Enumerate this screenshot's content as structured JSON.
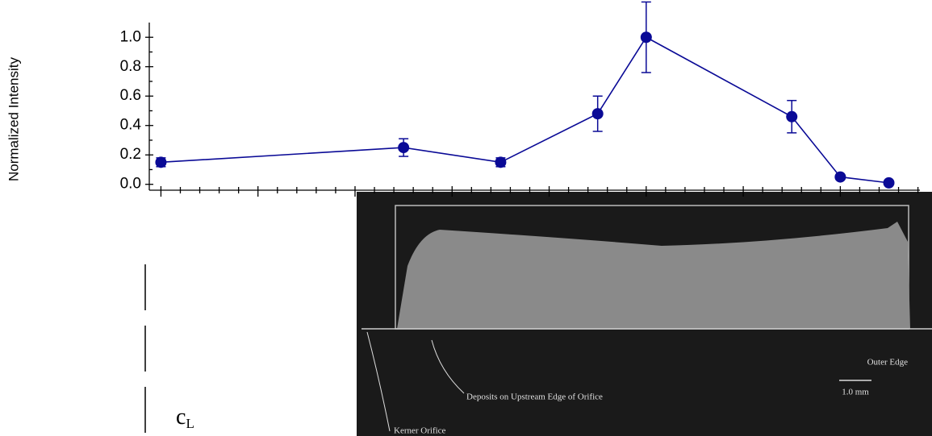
{
  "chart_data": {
    "type": "line",
    "y_label": "Normalized Intensity",
    "x": [
      0,
      2.5,
      3.5,
      4.5,
      5,
      6.5,
      7,
      7.5
    ],
    "series": [
      {
        "color": "#0a0a96",
        "values": [
          0.15,
          0.25,
          0.15,
          0.48,
          1.0,
          0.46,
          0.05,
          0.01
        ],
        "errors": [
          0.03,
          0.06,
          0.03,
          0.12,
          0.24,
          0.11,
          null,
          null
        ]
      }
    ],
    "xlim": [
      -0.12,
      7.82
    ],
    "xticks": [
      0,
      1,
      2,
      3,
      4,
      5,
      6,
      7
    ],
    "xminor": 5,
    "ylim": [
      -0.04,
      1.1
    ],
    "yticks": [
      {
        "value": 0,
        "label": "0.0"
      },
      0.2,
      0.4,
      0.6,
      0.8,
      {
        "value": 1,
        "label": "1.0"
      }
    ],
    "yminor": 2
  },
  "image_labels": {
    "outer_edge": "Outer Edge",
    "deposits": "Deposits on Upstream Edge of Orifice",
    "scale": "1.0 mm",
    "orifice": "Kerner Orifice"
  },
  "centerline_label": {
    "main": "c",
    "sub": "L"
  }
}
